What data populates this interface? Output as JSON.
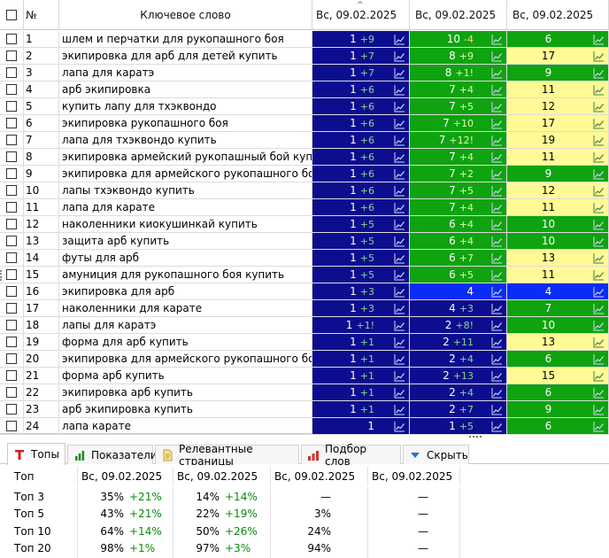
{
  "columns": {
    "num": "№",
    "keyword": "Ключевое слово",
    "date1": "Вс, 09.02.2025",
    "date2": "Вс, 09.02.2025",
    "date3": "Вс, 09.02.2025"
  },
  "rows": [
    {
      "n": "1",
      "kw": "шлем и перчатки для рукопашного боя",
      "c1": {
        "v": "1",
        "d": "+9",
        "bg": "navy"
      },
      "c2": {
        "v": "10",
        "d": "-4",
        "bg": "green"
      },
      "c3": {
        "v": "6",
        "d": "",
        "bg": "green"
      }
    },
    {
      "n": "2",
      "kw": "экипировка для арб для детей купить",
      "c1": {
        "v": "1",
        "d": "+7",
        "bg": "navy"
      },
      "c2": {
        "v": "8",
        "d": "+9",
        "bg": "green"
      },
      "c3": {
        "v": "17",
        "d": "",
        "bg": "yellow"
      }
    },
    {
      "n": "3",
      "kw": "лапа для каратэ",
      "c1": {
        "v": "1",
        "d": "+7",
        "bg": "navy"
      },
      "c2": {
        "v": "8",
        "d": "+1!",
        "bg": "green"
      },
      "c3": {
        "v": "9",
        "d": "",
        "bg": "green"
      }
    },
    {
      "n": "4",
      "kw": "арб экипировка",
      "c1": {
        "v": "1",
        "d": "+6",
        "bg": "navy"
      },
      "c2": {
        "v": "7",
        "d": "+4",
        "bg": "green"
      },
      "c3": {
        "v": "11",
        "d": "",
        "bg": "yellow"
      }
    },
    {
      "n": "5",
      "kw": "купить лапу для тхэквондо",
      "c1": {
        "v": "1",
        "d": "+6",
        "bg": "navy"
      },
      "c2": {
        "v": "7",
        "d": "+5",
        "bg": "green"
      },
      "c3": {
        "v": "12",
        "d": "",
        "bg": "yellow"
      }
    },
    {
      "n": "6",
      "kw": "экипировка рукопашного боя",
      "c1": {
        "v": "1",
        "d": "+6",
        "bg": "navy"
      },
      "c2": {
        "v": "7",
        "d": "+10",
        "bg": "green"
      },
      "c3": {
        "v": "17",
        "d": "",
        "bg": "yellow"
      }
    },
    {
      "n": "7",
      "kw": "лапа для тхэквондо купить",
      "c1": {
        "v": "1",
        "d": "+6",
        "bg": "navy"
      },
      "c2": {
        "v": "7",
        "d": "+12!",
        "bg": "green"
      },
      "c3": {
        "v": "19",
        "d": "",
        "bg": "yellow"
      }
    },
    {
      "n": "8",
      "kw": "экипировка армейский рукопашный бой купить",
      "c1": {
        "v": "1",
        "d": "+6",
        "bg": "navy"
      },
      "c2": {
        "v": "7",
        "d": "+4",
        "bg": "green"
      },
      "c3": {
        "v": "11",
        "d": "",
        "bg": "yellow"
      }
    },
    {
      "n": "9",
      "kw": "экипировка для армейского рукопашного бо...",
      "c1": {
        "v": "1",
        "d": "+6",
        "bg": "navy"
      },
      "c2": {
        "v": "7",
        "d": "+2",
        "bg": "green"
      },
      "c3": {
        "v": "9",
        "d": "",
        "bg": "green"
      }
    },
    {
      "n": "10",
      "kw": "лапы тхэквондо купить",
      "c1": {
        "v": "1",
        "d": "+6",
        "bg": "navy"
      },
      "c2": {
        "v": "7",
        "d": "+5",
        "bg": "green"
      },
      "c3": {
        "v": "12",
        "d": "",
        "bg": "yellow"
      }
    },
    {
      "n": "11",
      "kw": "лапа для карате",
      "c1": {
        "v": "1",
        "d": "+6",
        "bg": "navy"
      },
      "c2": {
        "v": "7",
        "d": "+4",
        "bg": "green"
      },
      "c3": {
        "v": "11",
        "d": "",
        "bg": "yellow"
      }
    },
    {
      "n": "12",
      "kw": "наколенники киокушинкай купить",
      "c1": {
        "v": "1",
        "d": "+5",
        "bg": "navy"
      },
      "c2": {
        "v": "6",
        "d": "+4",
        "bg": "green"
      },
      "c3": {
        "v": "10",
        "d": "",
        "bg": "green"
      }
    },
    {
      "n": "13",
      "kw": "защита арб купить",
      "c1": {
        "v": "1",
        "d": "+5",
        "bg": "navy"
      },
      "c2": {
        "v": "6",
        "d": "+4",
        "bg": "green"
      },
      "c3": {
        "v": "10",
        "d": "",
        "bg": "green"
      }
    },
    {
      "n": "14",
      "kw": "футы для арб",
      "c1": {
        "v": "1",
        "d": "+5",
        "bg": "navy"
      },
      "c2": {
        "v": "6",
        "d": "+7",
        "bg": "green"
      },
      "c3": {
        "v": "13",
        "d": "",
        "bg": "yellow"
      }
    },
    {
      "n": "15",
      "kw": "амуниция для рукопашного боя купить",
      "c1": {
        "v": "1",
        "d": "+5",
        "bg": "navy"
      },
      "c2": {
        "v": "6",
        "d": "+5",
        "bg": "green"
      },
      "c3": {
        "v": "11",
        "d": "",
        "bg": "yellow"
      }
    },
    {
      "n": "16",
      "kw": "экипировка для арб",
      "c1": {
        "v": "1",
        "d": "+3",
        "bg": "navy"
      },
      "c2": {
        "v": "4",
        "d": "",
        "bg": "blue"
      },
      "c3": {
        "v": "4",
        "d": "",
        "bg": "blue"
      }
    },
    {
      "n": "17",
      "kw": "наколенники для карате",
      "c1": {
        "v": "1",
        "d": "+3",
        "bg": "navy"
      },
      "c2": {
        "v": "4",
        "d": "+3",
        "bg": "navy"
      },
      "c3": {
        "v": "7",
        "d": "",
        "bg": "green"
      }
    },
    {
      "n": "18",
      "kw": "лапы для каратэ",
      "c1": {
        "v": "1",
        "d": "+1!",
        "bg": "navy"
      },
      "c2": {
        "v": "2",
        "d": "+8!",
        "bg": "navy"
      },
      "c3": {
        "v": "10",
        "d": "",
        "bg": "green"
      }
    },
    {
      "n": "19",
      "kw": "форма для арб купить",
      "c1": {
        "v": "1",
        "d": "+1",
        "bg": "navy"
      },
      "c2": {
        "v": "2",
        "d": "+11",
        "bg": "navy"
      },
      "c3": {
        "v": "13",
        "d": "",
        "bg": "yellow"
      }
    },
    {
      "n": "20",
      "kw": "экипировка для армейского рукопашного боя",
      "c1": {
        "v": "1",
        "d": "+1",
        "bg": "navy"
      },
      "c2": {
        "v": "2",
        "d": "+4",
        "bg": "navy"
      },
      "c3": {
        "v": "6",
        "d": "",
        "bg": "green"
      }
    },
    {
      "n": "21",
      "kw": "форма арб купить",
      "c1": {
        "v": "1",
        "d": "+1",
        "bg": "navy"
      },
      "c2": {
        "v": "2",
        "d": "+13",
        "bg": "navy"
      },
      "c3": {
        "v": "15",
        "d": "",
        "bg": "yellow"
      }
    },
    {
      "n": "22",
      "kw": "экипировка арб купить",
      "c1": {
        "v": "1",
        "d": "+1",
        "bg": "navy"
      },
      "c2": {
        "v": "2",
        "d": "+4",
        "bg": "navy"
      },
      "c3": {
        "v": "6",
        "d": "",
        "bg": "green"
      }
    },
    {
      "n": "23",
      "kw": "арб экипировка купить",
      "c1": {
        "v": "1",
        "d": "+1",
        "bg": "navy"
      },
      "c2": {
        "v": "2",
        "d": "+7",
        "bg": "navy"
      },
      "c3": {
        "v": "9",
        "d": "",
        "bg": "green"
      }
    },
    {
      "n": "24",
      "kw": "лапа карате",
      "c1": {
        "v": "1",
        "d": "",
        "bg": "navy"
      },
      "c2": {
        "v": "1",
        "d": "+5",
        "bg": "navy"
      },
      "c3": {
        "v": "6",
        "d": "",
        "bg": "green"
      }
    }
  ],
  "tabs": [
    {
      "label": "Топы",
      "icon": "top-icon",
      "active": true
    },
    {
      "label": "Показатели",
      "icon": "bar-chart-icon",
      "active": false
    },
    {
      "label": "Релевантные страницы",
      "icon": "document-icon",
      "active": false
    },
    {
      "label": "Подбор слов",
      "icon": "word-selection-icon",
      "active": false
    },
    {
      "label": "Скрыть",
      "icon": "triangle-down-icon",
      "active": false
    }
  ],
  "tops": {
    "header": [
      "Топ",
      "Вс, 09.02.2025",
      "Вс, 09.02.2025",
      "Вс, 09.02.2025",
      "Вс, 09.02.2025"
    ],
    "rows": [
      {
        "label": "Топ 3",
        "c": [
          {
            "v": "35%",
            "d": "+21%"
          },
          {
            "v": "14%",
            "d": "+14%"
          },
          {
            "v": "—",
            "d": ""
          },
          {
            "v": "—",
            "d": ""
          }
        ]
      },
      {
        "label": "Топ 5",
        "c": [
          {
            "v": "43%",
            "d": "+21%"
          },
          {
            "v": "22%",
            "d": "+19%"
          },
          {
            "v": "3%",
            "d": ""
          },
          {
            "v": "—",
            "d": ""
          }
        ]
      },
      {
        "label": "Топ 10",
        "c": [
          {
            "v": "64%",
            "d": "+14%"
          },
          {
            "v": "50%",
            "d": "+26%"
          },
          {
            "v": "24%",
            "d": ""
          },
          {
            "v": "—",
            "d": ""
          }
        ]
      },
      {
        "label": "Топ 20",
        "c": [
          {
            "v": "98%",
            "d": "+1%"
          },
          {
            "v": "97%",
            "d": "+3%"
          },
          {
            "v": "94%",
            "d": ""
          },
          {
            "v": "—",
            "d": ""
          }
        ]
      }
    ]
  },
  "colors": {
    "navy": "#0d0d8f",
    "green": "#0fa30f",
    "yellow": "#fffa95",
    "blue": "#0a2cf5",
    "delta_on_navy": "#8fd38f",
    "delta_on_green_pos": "#d8ffb0",
    "delta_on_green_neg": "#ffd08a",
    "up_text": "#0a8a0a"
  }
}
